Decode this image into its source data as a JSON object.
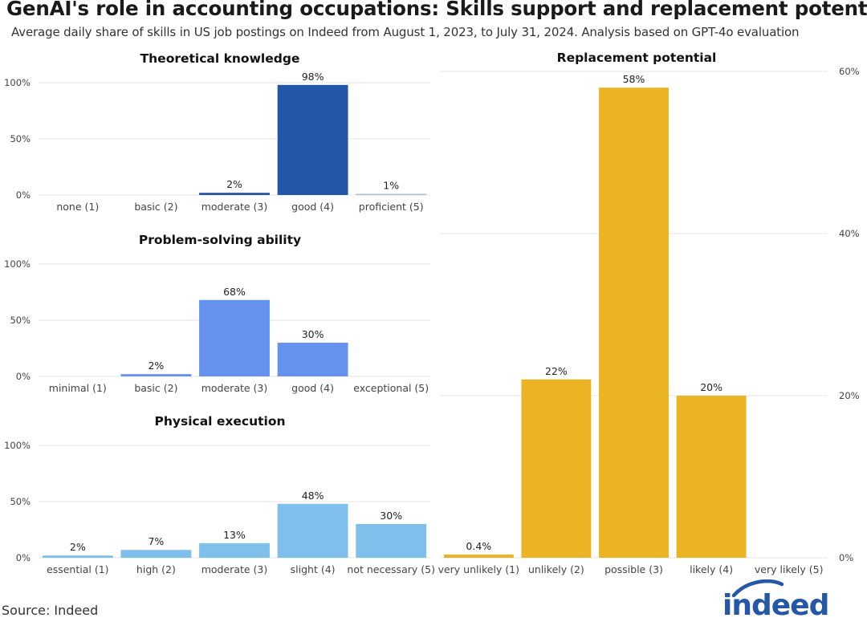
{
  "title": "GenAI's role in accounting occupations: Skills support and replacement potential",
  "subtitle": "Average daily share of skills in US job postings on Indeed from August 1, 2023, to July 31, 2024. Analysis based on GPT-4o evaluation",
  "source": "Source: Indeed",
  "logo_text": "indeed",
  "chart_data": [
    {
      "type": "bar",
      "title": "Theoretical knowledge",
      "categories": [
        "none (1)",
        "basic (2)",
        "moderate (3)",
        "good (4)",
        "proficient (5)"
      ],
      "values": [
        0,
        0,
        2,
        98,
        1
      ],
      "data_labels": [
        "",
        "",
        "2%",
        "98%",
        "1%"
      ],
      "bar_colors": [
        "#2356a6",
        "#2356a6",
        "#2356a6",
        "#2356a6",
        "#a9bcd8"
      ],
      "ylim": [
        0,
        100
      ],
      "yticks": [
        0,
        50,
        100
      ],
      "ytick_labels": [
        "0%",
        "50%",
        "100%"
      ],
      "y_axis_side": "left",
      "grid": true
    },
    {
      "type": "bar",
      "title": "Problem-solving ability",
      "categories": [
        "minimal (1)",
        "basic (2)",
        "moderate (3)",
        "good (4)",
        "exceptional (5)"
      ],
      "values": [
        0,
        2,
        68,
        30,
        0
      ],
      "data_labels": [
        "",
        "2%",
        "68%",
        "30%",
        ""
      ],
      "bar_colors": [
        "#6591ef",
        "#6591ef",
        "#6591ef",
        "#6591ef",
        "#6591ef"
      ],
      "ylim": [
        0,
        100
      ],
      "yticks": [
        0,
        50,
        100
      ],
      "ytick_labels": [
        "0%",
        "50%",
        "100%"
      ],
      "y_axis_side": "left",
      "grid": true
    },
    {
      "type": "bar",
      "title": "Physical execution",
      "categories": [
        "essential (1)",
        "high (2)",
        "moderate (3)",
        "slight (4)",
        "not necessary (5)"
      ],
      "values": [
        2,
        7,
        13,
        48,
        30
      ],
      "data_labels": [
        "2%",
        "7%",
        "13%",
        "48%",
        "30%"
      ],
      "bar_colors": [
        "#7fbfec",
        "#7fbfec",
        "#7fbfec",
        "#7fbfec",
        "#7fbfec"
      ],
      "ylim": [
        0,
        100
      ],
      "yticks": [
        0,
        50,
        100
      ],
      "ytick_labels": [
        "0%",
        "50%",
        "100%"
      ],
      "y_axis_side": "left",
      "grid": true
    },
    {
      "type": "bar",
      "title": "Replacement potential",
      "categories": [
        "very unlikely (1)",
        "unlikely (2)",
        "possible (3)",
        "likely (4)",
        "very likely (5)"
      ],
      "values": [
        0.4,
        22,
        58,
        20,
        0
      ],
      "data_labels": [
        "0.4%",
        "22%",
        "58%",
        "20%",
        ""
      ],
      "bar_colors": [
        "#ecb324",
        "#ecb324",
        "#ecb324",
        "#ecb324",
        "#ecb324"
      ],
      "ylim": [
        0,
        60
      ],
      "yticks": [
        0,
        20,
        40,
        60
      ],
      "ytick_labels": [
        "0%",
        "20%",
        "40%",
        "60%"
      ],
      "y_axis_side": "right",
      "grid": true
    }
  ]
}
